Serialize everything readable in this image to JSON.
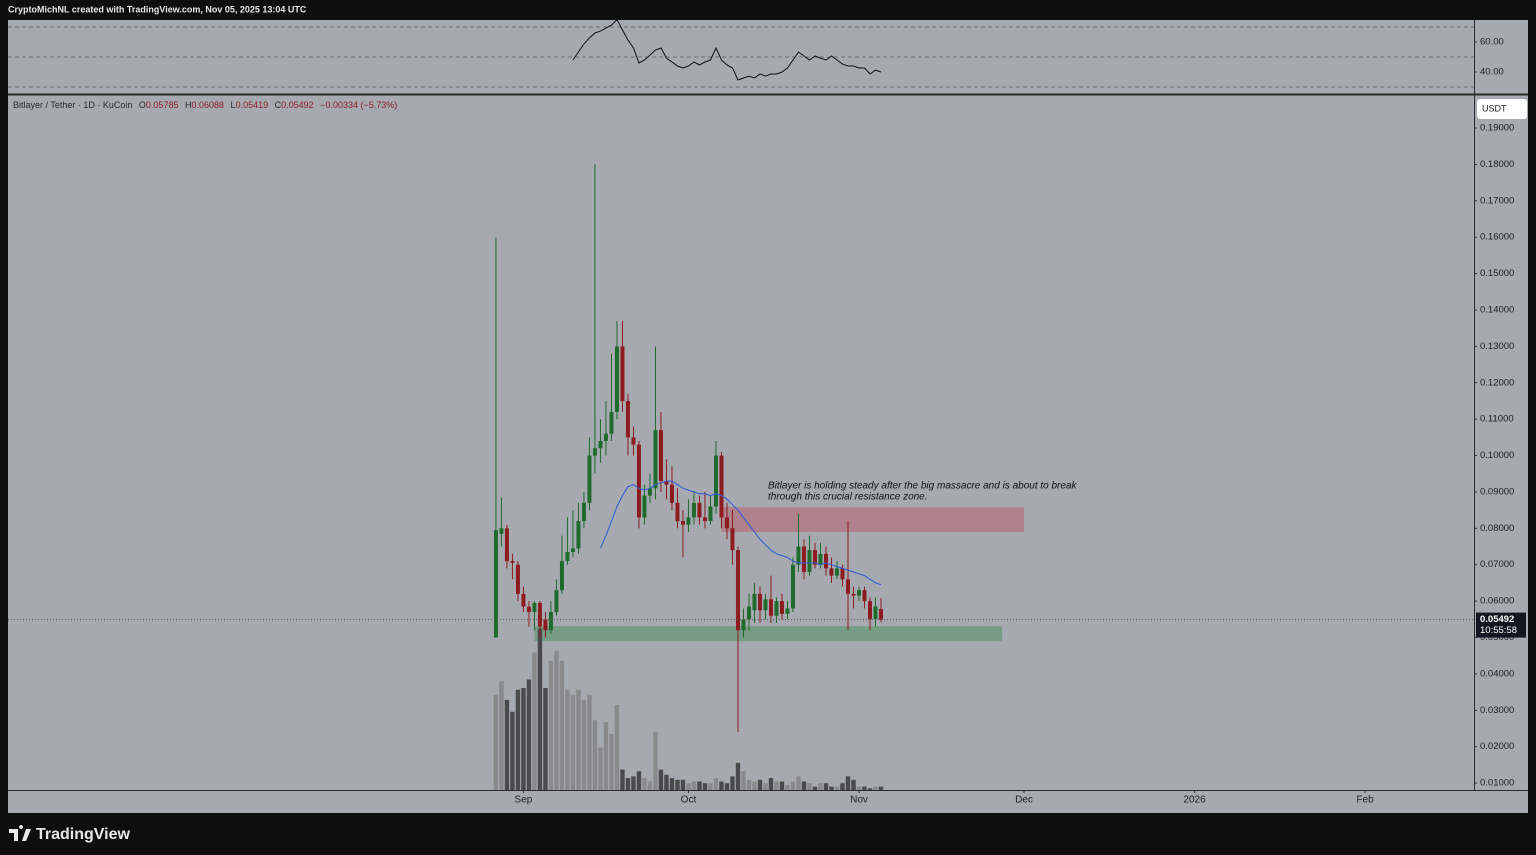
{
  "header": "CryptoMichNL created with TradingView.com, Nov 05, 2025 13:04 UTC",
  "footer": {
    "brand": "TradingView"
  },
  "chart_data": {
    "type": "candlestick",
    "legend": {
      "symbol": "Bitlayer / Tether · 1D · KuCoin",
      "fields": [
        "O",
        "H",
        "L",
        "C"
      ],
      "change": "−0.00334 (−5.73%)"
    },
    "currency": "USDT",
    "countdown": "10:55:58",
    "annotation": [
      "Bitlayer is holding steady after the big massacre and is about to break",
      "through this crucial resistance zone."
    ],
    "up_color": "#1f6b2c",
    "down_color": "#8c1c1f",
    "ma_color": "#2a5bd7",
    "rsi_color": "#111111",
    "volume_up_color": "#8a8a8c",
    "volume_down_color": "#4a4a4c",
    "xlim": [
      -88.7,
      177.8
    ],
    "xticks": [
      {
        "value": 5,
        "label": "Sep"
      },
      {
        "value": 35,
        "label": "Oct"
      },
      {
        "value": 66,
        "label": "Nov"
      },
      {
        "value": 96,
        "label": "Dec"
      },
      {
        "value": 127,
        "label": "2026"
      },
      {
        "value": 158,
        "label": "Feb"
      }
    ],
    "ylim": [
      0.0081,
      0.1988
    ],
    "yticks": [
      {
        "value": 0.01,
        "label": "0.01000"
      },
      {
        "value": 0.02,
        "label": "0.02000"
      },
      {
        "value": 0.03,
        "label": "0.03000"
      },
      {
        "value": 0.04,
        "label": "0.04000"
      },
      {
        "value": 0.05,
        "label": "0.05000"
      },
      {
        "value": 0.06,
        "label": "0.06000"
      },
      {
        "value": 0.07,
        "label": "0.07000"
      },
      {
        "value": 0.08,
        "label": "0.08000"
      },
      {
        "value": 0.09,
        "label": "0.09000"
      },
      {
        "value": 0.1,
        "label": "0.10000"
      },
      {
        "value": 0.11,
        "label": "0.11000"
      },
      {
        "value": 0.12,
        "label": "0.12000"
      },
      {
        "value": 0.13,
        "label": "0.13000"
      },
      {
        "value": 0.14,
        "label": "0.14000"
      },
      {
        "value": 0.15,
        "label": "0.15000"
      },
      {
        "value": 0.16,
        "label": "0.16000"
      },
      {
        "value": 0.17,
        "label": "0.17000"
      },
      {
        "value": 0.18,
        "label": "0.18000"
      },
      {
        "value": 0.19,
        "label": "0.19000"
      }
    ],
    "open": [
      0.05,
      0.0785,
      0.08,
      0.071,
      0.07,
      0.062,
      0.0585,
      0.057,
      0.0595,
      0.055,
      0.052,
      0.057,
      0.063,
      0.071,
      0.0735,
      0.0745,
      0.082,
      0.087,
      0.1,
      0.102,
      0.104,
      0.106,
      0.112,
      0.13,
      0.115,
      0.105,
      0.103,
      0.083,
      0.089,
      0.091,
      0.107,
      0.093,
      0.092,
      0.087,
      0.082,
      0.081,
      0.083,
      0.087,
      0.083,
      0.082,
      0.086,
      0.1,
      0.083,
      0.08,
      0.074,
      0.052,
      0.055,
      0.0575,
      0.062,
      0.0575,
      0.0605,
      0.056,
      0.06,
      0.0565,
      0.058,
      0.07,
      0.075,
      0.068,
      0.074,
      0.07,
      0.073,
      0.069,
      0.067,
      0.069,
      0.066,
      0.062,
      0.0615,
      0.063,
      0.06,
      0.055,
      0.05785
    ],
    "high": [
      0.16,
      0.0885,
      0.081,
      0.073,
      0.071,
      0.064,
      0.06,
      0.06,
      0.06,
      0.057,
      0.06,
      0.066,
      0.078,
      0.083,
      0.085,
      0.087,
      0.09,
      0.105,
      0.18,
      0.11,
      0.115,
      0.128,
      0.137,
      0.137,
      0.117,
      0.108,
      0.104,
      0.092,
      0.095,
      0.13,
      0.112,
      0.099,
      0.097,
      0.091,
      0.085,
      0.088,
      0.09,
      0.089,
      0.09,
      0.089,
      0.104,
      0.101,
      0.087,
      0.085,
      0.075,
      0.058,
      0.062,
      0.065,
      0.064,
      0.062,
      0.067,
      0.061,
      0.062,
      0.06,
      0.072,
      0.084,
      0.077,
      0.078,
      0.076,
      0.076,
      0.075,
      0.072,
      0.071,
      0.07,
      0.082,
      0.064,
      0.064,
      0.064,
      0.061,
      0.061,
      0.06088
    ],
    "low": [
      0.05,
      0.075,
      0.069,
      0.066,
      0.06,
      0.057,
      0.053,
      0.052,
      0.05,
      0.05,
      0.051,
      0.056,
      0.062,
      0.07,
      0.072,
      0.073,
      0.08,
      0.085,
      0.095,
      0.098,
      0.1,
      0.104,
      0.11,
      0.112,
      0.1,
      0.1,
      0.08,
      0.081,
      0.087,
      0.088,
      0.09,
      0.088,
      0.085,
      0.08,
      0.072,
      0.079,
      0.081,
      0.081,
      0.08,
      0.081,
      0.084,
      0.08,
      0.077,
      0.07,
      0.024,
      0.05,
      0.052,
      0.054,
      0.054,
      0.055,
      0.054,
      0.054,
      0.055,
      0.055,
      0.057,
      0.068,
      0.066,
      0.067,
      0.069,
      0.069,
      0.067,
      0.065,
      0.066,
      0.064,
      0.052,
      0.058,
      0.06,
      0.058,
      0.052,
      0.053,
      0.05419
    ],
    "close": [
      0.0795,
      0.08,
      0.071,
      0.0705,
      0.062,
      0.0585,
      0.057,
      0.0595,
      0.053,
      0.052,
      0.057,
      0.063,
      0.071,
      0.0735,
      0.0745,
      0.082,
      0.087,
      0.1,
      0.102,
      0.104,
      0.106,
      0.112,
      0.13,
      0.115,
      0.105,
      0.103,
      0.083,
      0.089,
      0.091,
      0.107,
      0.093,
      0.092,
      0.087,
      0.082,
      0.081,
      0.083,
      0.087,
      0.083,
      0.082,
      0.086,
      0.1,
      0.083,
      0.08,
      0.074,
      0.052,
      0.055,
      0.0585,
      0.062,
      0.0575,
      0.0605,
      0.056,
      0.06,
      0.0565,
      0.058,
      0.07,
      0.075,
      0.068,
      0.074,
      0.07,
      0.073,
      0.069,
      0.067,
      0.069,
      0.066,
      0.062,
      0.0615,
      0.063,
      0.06,
      0.055,
      0.0585,
      0.05492
    ],
    "volume_ylim": [
      0,
      100
    ],
    "volume": [
      56,
      64,
      53,
      46,
      59,
      60,
      65,
      81,
      95,
      60,
      76,
      82,
      76,
      59,
      56,
      59,
      53,
      56,
      41,
      25,
      40,
      33,
      50,
      12,
      7,
      8,
      11,
      7,
      5,
      34,
      12,
      9,
      7,
      6,
      6,
      4,
      5,
      5,
      4,
      4,
      7,
      5,
      4,
      8,
      16,
      11,
      6,
      5,
      6,
      4,
      7,
      5,
      5,
      3,
      5,
      8,
      5,
      4,
      2,
      4,
      4,
      2,
      2,
      4,
      8,
      6,
      2,
      2,
      1,
      2,
      2
    ],
    "ma": [
      null,
      null,
      null,
      null,
      null,
      null,
      null,
      null,
      null,
      null,
      null,
      null,
      null,
      null,
      null,
      null,
      null,
      null,
      null,
      0.0746,
      0.078,
      0.082,
      0.086,
      0.089,
      0.0915,
      0.092,
      0.091,
      0.0905,
      0.091,
      0.092,
      0.0925,
      0.093,
      0.093,
      0.092,
      0.091,
      0.0905,
      0.09,
      0.0895,
      0.0895,
      0.089,
      0.0895,
      0.089,
      0.088,
      0.0865,
      0.085,
      0.083,
      0.081,
      0.079,
      0.077,
      0.0755,
      0.074,
      0.073,
      0.0725,
      0.072,
      0.071,
      0.0705,
      0.0705,
      0.0705,
      0.0705,
      0.07,
      0.0705,
      0.07,
      0.0695,
      0.069,
      0.0685,
      0.068,
      0.0675,
      0.067,
      0.066,
      0.065,
      0.0645
    ],
    "rsi_ylim": [
      26,
      74.7
    ],
    "rsi_yticks": [
      {
        "value": 60,
        "label": "60.00"
      },
      {
        "value": 40,
        "label": "40.00"
      }
    ],
    "rsi_levels": [
      70,
      50,
      30
    ],
    "rsi": [
      null,
      null,
      null,
      null,
      null,
      null,
      null,
      null,
      null,
      null,
      null,
      null,
      null,
      null,
      48,
      53.3,
      58.7,
      62.7,
      66,
      67.3,
      69.3,
      71.3,
      75,
      68,
      61.3,
      56,
      46,
      48,
      51.3,
      54.7,
      56,
      49.3,
      46.7,
      44,
      42.7,
      44,
      46.7,
      44.7,
      46.7,
      48,
      56,
      48,
      44.7,
      42.7,
      34.7,
      36,
      37.3,
      36,
      38.7,
      37.3,
      38.7,
      38.7,
      40,
      42.7,
      48,
      53.3,
      50.7,
      48,
      50.7,
      49.3,
      48,
      50.7,
      48,
      45.3,
      44,
      44,
      42.7,
      42.7,
      38.7,
      41.3,
      40
    ],
    "zones": [
      {
        "x": [
          41,
          96
        ],
        "y": [
          0.079,
          0.0858
        ],
        "color": "#b07a84"
      },
      {
        "x": [
          7,
          92
        ],
        "y": [
          0.049,
          0.0531
        ],
        "color": "#6f9a7c"
      }
    ]
  }
}
